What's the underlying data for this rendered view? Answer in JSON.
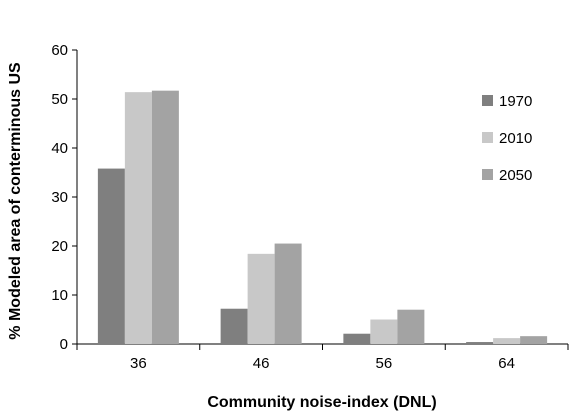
{
  "chart_data": {
    "type": "bar",
    "title": "",
    "xlabel": "Community noise-index (DNL)",
    "ylabel": "% Modeled area of conterminous US",
    "categories": [
      "36",
      "46",
      "56",
      "64"
    ],
    "series": [
      {
        "name": "1970",
        "values": [
          35.8,
          7.2,
          2.1,
          0.4
        ],
        "color": "#7f7f7f"
      },
      {
        "name": "2010",
        "values": [
          51.4,
          18.4,
          5.0,
          1.2
        ],
        "color": "#c8c8c8"
      },
      {
        "name": "2050",
        "values": [
          51.7,
          20.5,
          7.0,
          1.6
        ],
        "color": "#a3a3a3"
      }
    ],
    "ylim": [
      0,
      60
    ],
    "yticks": [
      0,
      10,
      20,
      30,
      40,
      50,
      60
    ],
    "grid": false,
    "legend_position": "right"
  }
}
